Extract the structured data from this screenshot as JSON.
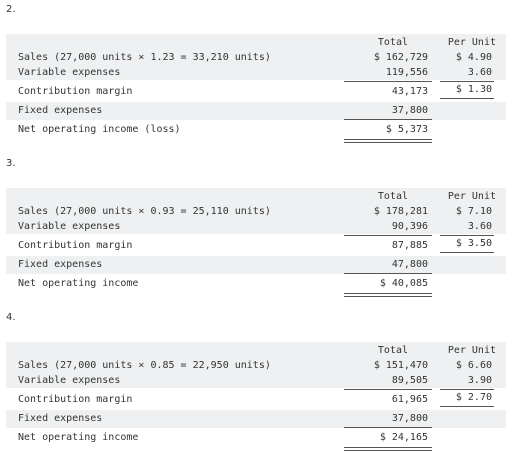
{
  "headers": {
    "total": "Total",
    "per_unit": "Per Unit"
  },
  "sections": [
    {
      "number": "2.",
      "rows": [
        {
          "label": "Sales (27,000 units × 1.23 = 33,210 units)",
          "total": "$ 162,729",
          "per_unit": "$ 4.90"
        },
        {
          "label": "Variable expenses",
          "total": "119,556",
          "per_unit": "3.60"
        },
        {
          "label": "Contribution margin",
          "total": "43,173",
          "per_unit": "$ 1.30"
        },
        {
          "label": "Fixed expenses",
          "total": "37,800",
          "per_unit": ""
        },
        {
          "label": "Net operating income (loss)",
          "total": "$ 5,373",
          "per_unit": ""
        }
      ]
    },
    {
      "number": "3.",
      "rows": [
        {
          "label": "Sales (27,000 units × 0.93 = 25,110 units)",
          "total": "$ 178,281",
          "per_unit": "$ 7.10"
        },
        {
          "label": "Variable expenses",
          "total": "90,396",
          "per_unit": "3.60"
        },
        {
          "label": "Contribution margin",
          "total": "87,885",
          "per_unit": "$ 3.50"
        },
        {
          "label": "Fixed expenses",
          "total": "47,800",
          "per_unit": ""
        },
        {
          "label": "Net operating income",
          "total": "$ 40,085",
          "per_unit": ""
        }
      ]
    },
    {
      "number": "4.",
      "rows": [
        {
          "label": "Sales (27,000 units × 0.85 = 22,950 units)",
          "total": "$ 151,470",
          "per_unit": "$ 6.60"
        },
        {
          "label": "Variable expenses",
          "total": "89,505",
          "per_unit": "3.90"
        },
        {
          "label": "Contribution margin",
          "total": "61,965",
          "per_unit": "$ 2.70"
        },
        {
          "label": "Fixed expenses",
          "total": "37,800",
          "per_unit": ""
        },
        {
          "label": "Net operating income",
          "total": "$ 24,165",
          "per_unit": ""
        }
      ]
    }
  ]
}
